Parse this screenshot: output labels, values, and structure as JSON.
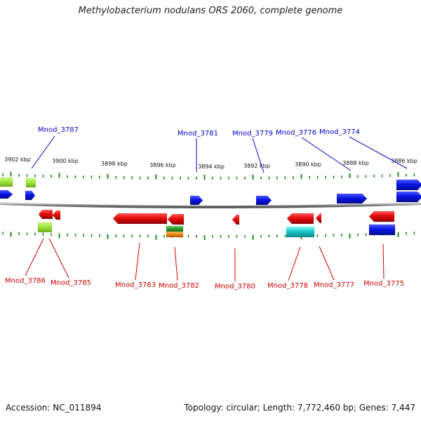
{
  "title": "Methylobacterium nodulans ORS 2060, complete genome",
  "footer": {
    "accession": "Accession: NC_011894",
    "summary": "Topology: circular; Length: 7,772,460 bp; Genes: 7,447"
  },
  "colors": {
    "backbone": "#8c8c8c",
    "tick": "#228b22",
    "label_top": "#0000cc",
    "label_bottom": "#cc0000",
    "forward_gene": "#0a14e6",
    "reverse_gene": "#e60a0a",
    "lime": "#9ee63c",
    "green": "#30a030",
    "orange": "#f08c14",
    "cyan": "#18c8c8"
  },
  "scale": {
    "ticks": [
      {
        "label": "3902 kbp"
      },
      {
        "label": "3900 kbp"
      },
      {
        "label": "3898 kbp"
      },
      {
        "label": "3896 kbp"
      },
      {
        "label": "3894 kbp"
      },
      {
        "label": "3892 kbp"
      },
      {
        "label": "3890 kbp"
      },
      {
        "label": "3888 kbp"
      },
      {
        "label": "3886 kbp"
      }
    ]
  },
  "top_labels": [
    {
      "text": "Mnod_3787"
    },
    {
      "text": "Mnod_3781"
    },
    {
      "text": "Mnod_3779"
    },
    {
      "text": "Mnod_3776"
    },
    {
      "text": "Mnod_3774"
    }
  ],
  "bottom_labels": [
    {
      "text": "Mnod_3786"
    },
    {
      "text": "Mnod_3785"
    },
    {
      "text": "Mnod_3783"
    },
    {
      "text": "Mnod_3782"
    },
    {
      "text": "Mnod_3780"
    },
    {
      "text": "Mnod_3778"
    },
    {
      "text": "Mnod_3777"
    },
    {
      "text": "Mnod_3775"
    }
  ]
}
